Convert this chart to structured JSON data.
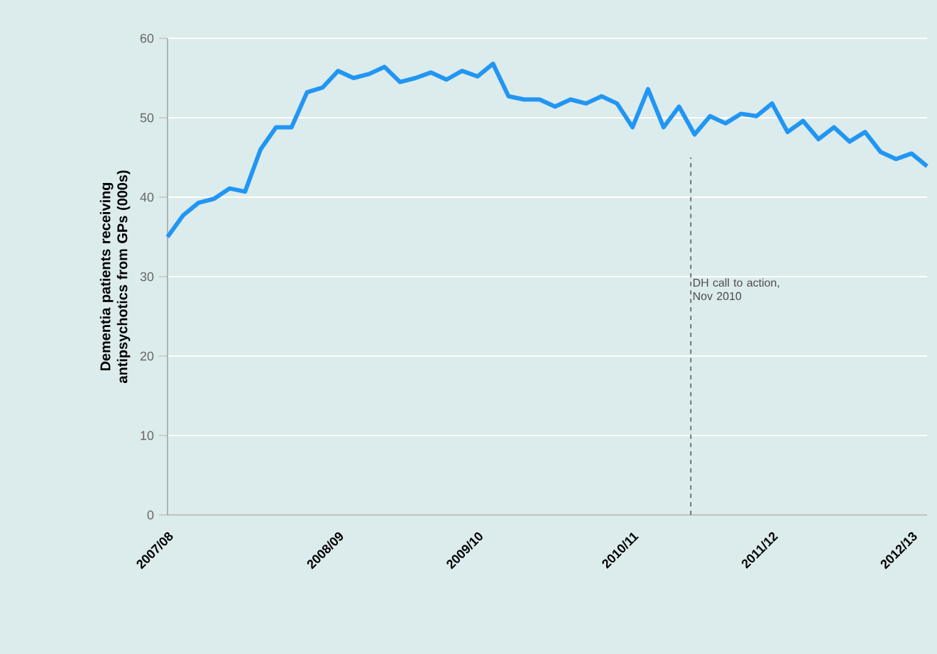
{
  "chart_data": {
    "type": "line",
    "ylabel": "Dementia patients receiving antipsychotics from GPs (000s)",
    "categories": [
      "2007/08",
      null,
      null,
      null,
      null,
      null,
      null,
      null,
      null,
      null,
      null,
      "2008/09",
      null,
      null,
      null,
      null,
      null,
      null,
      null,
      null,
      "2009/10",
      null,
      null,
      null,
      null,
      null,
      null,
      null,
      null,
      null,
      "2010/11",
      null,
      null,
      null,
      null,
      null,
      null,
      null,
      null,
      "2011/12",
      null,
      null,
      null,
      null,
      null,
      null,
      null,
      null,
      "2012/13",
      null
    ],
    "series": [
      {
        "color": "#2196f3",
        "values": [
          35,
          37.7,
          39.3,
          39.8,
          41.1,
          40.7,
          46,
          48.8,
          48.8,
          53.2,
          53.8,
          55.9,
          55,
          55.5,
          56.4,
          54.5,
          55,
          55.7,
          54.8,
          55.9,
          55.2,
          56.8,
          52.7,
          52.3,
          52.3,
          51.4,
          52.3,
          51.8,
          52.7,
          51.8,
          48.8,
          53.6,
          48.8,
          51.4,
          47.9,
          50.2,
          49.3,
          50.5,
          50.2,
          51.8,
          48.2,
          49.6,
          47.3,
          48.8,
          47,
          48.2,
          45.7,
          44.8,
          45.5,
          43.9
        ]
      }
    ],
    "ylim": [
      0,
      60
    ],
    "yticks": [
      0,
      10,
      20,
      30,
      40,
      50,
      60
    ],
    "grid": "y",
    "marker": "none",
    "line_style": "solid",
    "annotations": [
      "DH call to action, Nov 2010"
    ]
  }
}
